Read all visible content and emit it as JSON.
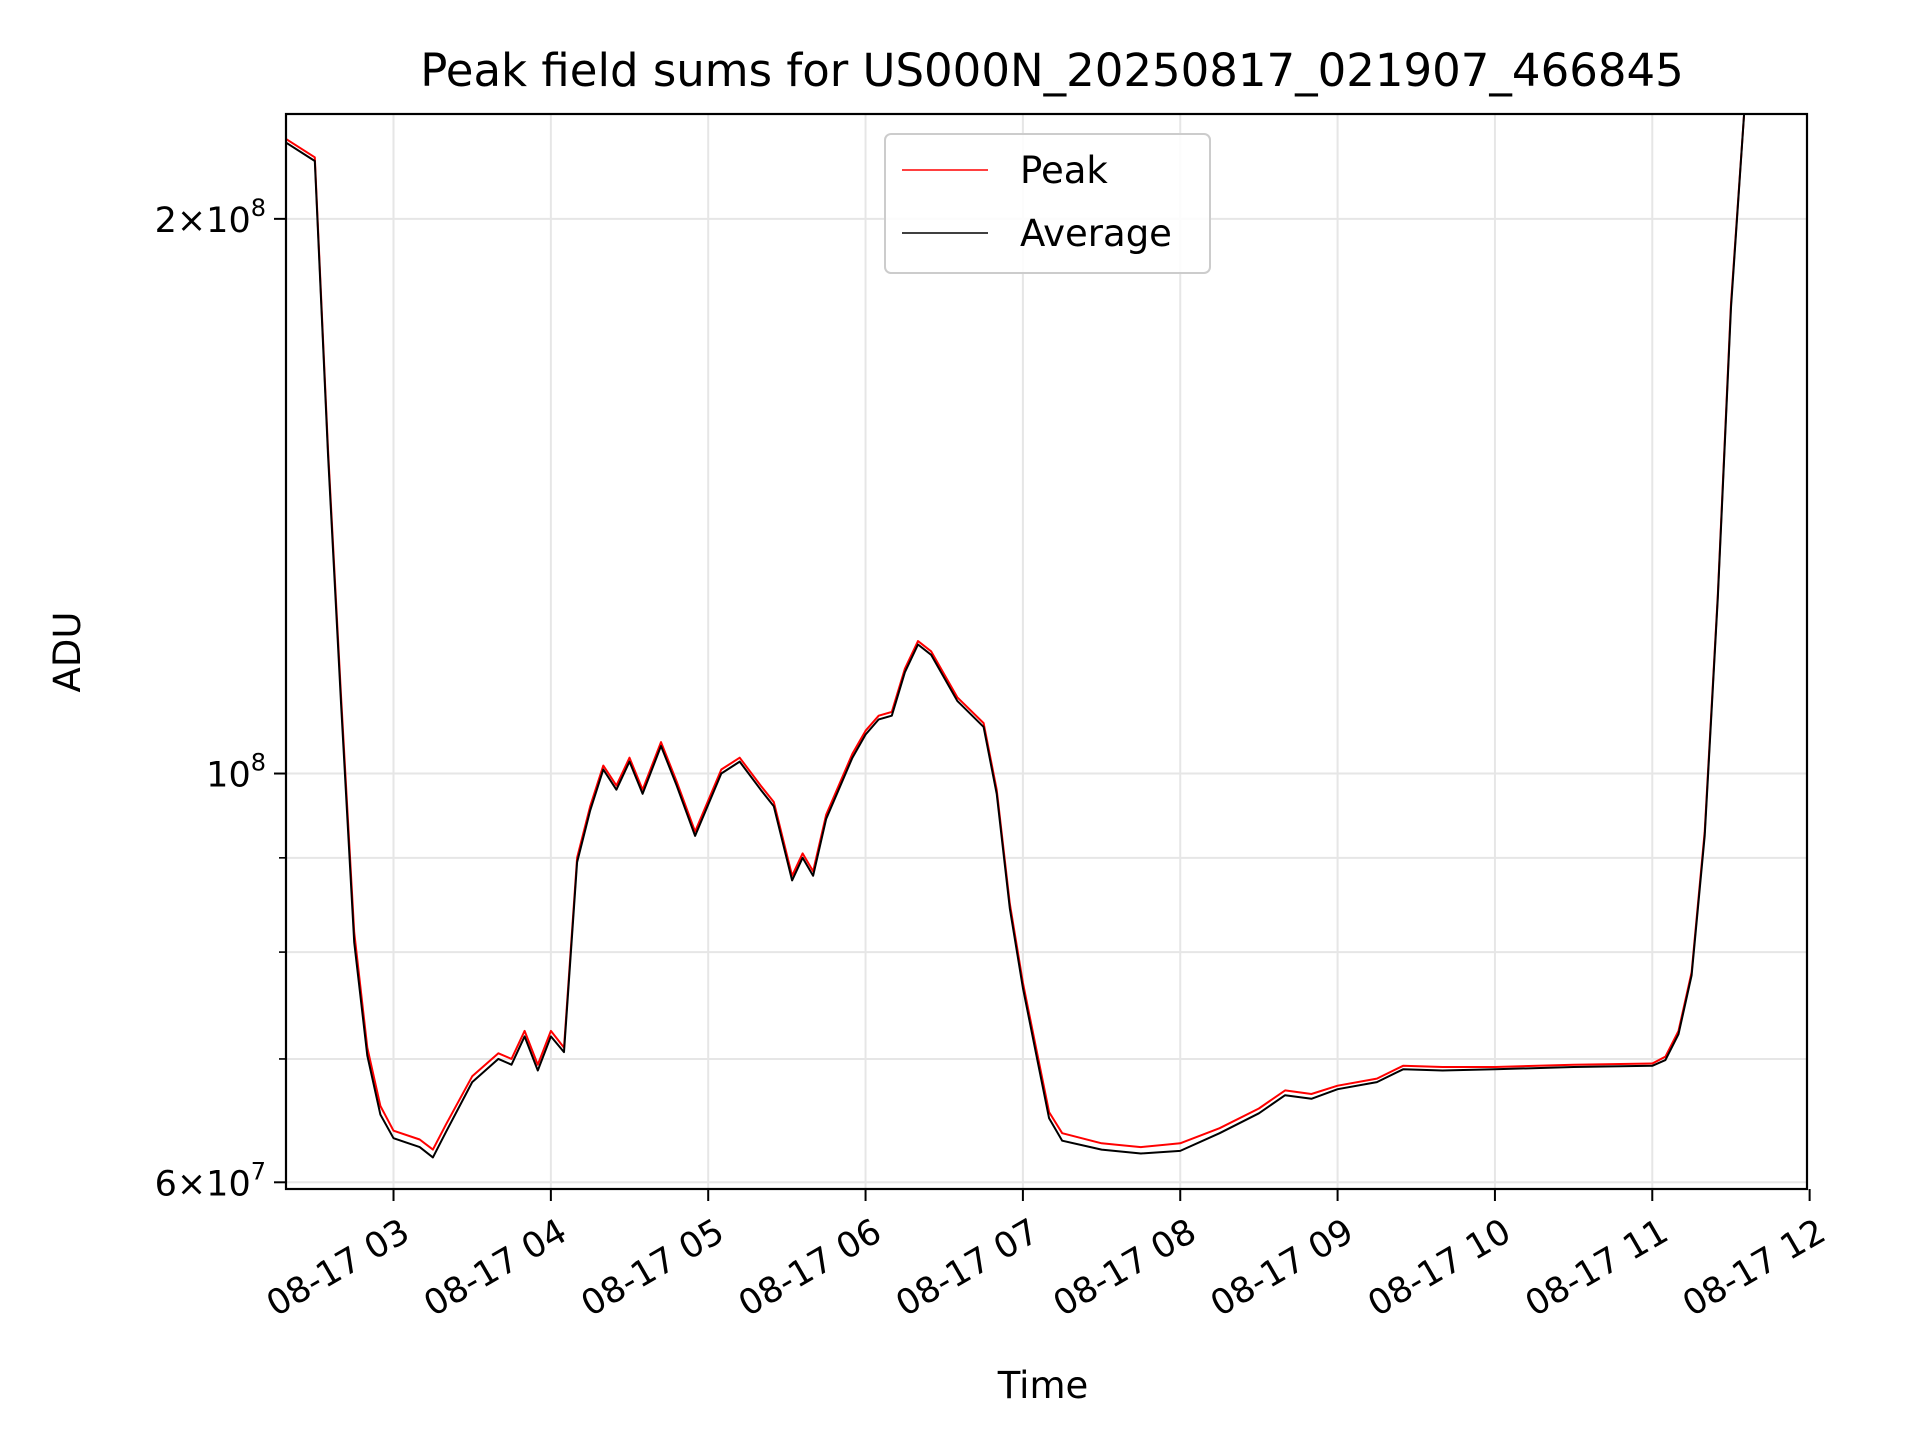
{
  "chart_data": {
    "type": "line",
    "title": "Peak field sums for US000N_20250817_021907_466845",
    "xlabel": "Time",
    "ylabel": "ADU",
    "y_scale": "log",
    "grid": true,
    "legend_position": "upper center",
    "x_range": [
      "2025-08-17 02:19",
      "2025-08-17 11:59"
    ],
    "ylim": [
      59500000,
      228000000
    ],
    "x_ticks": [
      {
        "t": "2025-08-17 03:00",
        "label": "08-17 03"
      },
      {
        "t": "2025-08-17 04:00",
        "label": "08-17 04"
      },
      {
        "t": "2025-08-17 05:00",
        "label": "08-17 05"
      },
      {
        "t": "2025-08-17 06:00",
        "label": "08-17 06"
      },
      {
        "t": "2025-08-17 07:00",
        "label": "08-17 07"
      },
      {
        "t": "2025-08-17 08:00",
        "label": "08-17 08"
      },
      {
        "t": "2025-08-17 09:00",
        "label": "08-17 09"
      },
      {
        "t": "2025-08-17 10:00",
        "label": "08-17 10"
      },
      {
        "t": "2025-08-17 11:00",
        "label": "08-17 11"
      },
      {
        "t": "2025-08-17 12:00",
        "label": "08-17 12"
      }
    ],
    "y_major_ticks": [
      {
        "value": 60000000,
        "mant": "6",
        "exp": "7"
      },
      {
        "value": 100000000,
        "mant": "",
        "exp": "8"
      },
      {
        "value": 200000000,
        "mant": "2",
        "exp": "8"
      }
    ],
    "y_minor_ticks": [
      70000000,
      80000000,
      90000000
    ],
    "series": [
      {
        "name": "Peak",
        "color": "#ff0000",
        "points": [
          [
            "2025-08-17 02:19",
            221000000
          ],
          [
            "2025-08-17 02:30",
            216000000
          ],
          [
            "2025-08-17 02:35",
            150000000
          ],
          [
            "2025-08-17 02:40",
            110000000
          ],
          [
            "2025-08-17 02:45",
            82000000
          ],
          [
            "2025-08-17 02:50",
            71000000
          ],
          [
            "2025-08-17 02:55",
            66000000
          ],
          [
            "2025-08-17 03:00",
            64000000
          ],
          [
            "2025-08-17 03:10",
            63300000
          ],
          [
            "2025-08-17 03:15",
            62500000
          ],
          [
            "2025-08-17 03:20",
            64500000
          ],
          [
            "2025-08-17 03:30",
            68500000
          ],
          [
            "2025-08-17 03:40",
            70500000
          ],
          [
            "2025-08-17 03:45",
            70000000
          ],
          [
            "2025-08-17 03:50",
            72500000
          ],
          [
            "2025-08-17 03:55",
            69500000
          ],
          [
            "2025-08-17 04:00",
            72500000
          ],
          [
            "2025-08-17 04:05",
            71000000
          ],
          [
            "2025-08-17 04:10",
            90000000
          ],
          [
            "2025-08-17 04:15",
            96000000
          ],
          [
            "2025-08-17 04:20",
            101000000
          ],
          [
            "2025-08-17 04:25",
            98500000
          ],
          [
            "2025-08-17 04:30",
            102000000
          ],
          [
            "2025-08-17 04:35",
            98000000
          ],
          [
            "2025-08-17 04:42",
            104000000
          ],
          [
            "2025-08-17 04:48",
            99000000
          ],
          [
            "2025-08-17 04:55",
            93000000
          ],
          [
            "2025-08-17 05:05",
            100500000
          ],
          [
            "2025-08-17 05:12",
            102000000
          ],
          [
            "2025-08-17 05:20",
            98500000
          ],
          [
            "2025-08-17 05:25",
            96500000
          ],
          [
            "2025-08-17 05:32",
            88000000
          ],
          [
            "2025-08-17 05:36",
            90500000
          ],
          [
            "2025-08-17 05:40",
            88500000
          ],
          [
            "2025-08-17 05:45",
            95000000
          ],
          [
            "2025-08-17 05:55",
            102500000
          ],
          [
            "2025-08-17 06:00",
            105500000
          ],
          [
            "2025-08-17 06:05",
            107500000
          ],
          [
            "2025-08-17 06:10",
            108000000
          ],
          [
            "2025-08-17 06:15",
            114000000
          ],
          [
            "2025-08-17 06:20",
            118000000
          ],
          [
            "2025-08-17 06:25",
            116500000
          ],
          [
            "2025-08-17 06:35",
            110000000
          ],
          [
            "2025-08-17 06:45",
            106500000
          ],
          [
            "2025-08-17 06:50",
            98000000
          ],
          [
            "2025-08-17 06:55",
            85000000
          ],
          [
            "2025-08-17 07:00",
            77000000
          ],
          [
            "2025-08-17 07:05",
            71000000
          ],
          [
            "2025-08-17 07:10",
            65500000
          ],
          [
            "2025-08-17 07:15",
            63800000
          ],
          [
            "2025-08-17 07:30",
            63000000
          ],
          [
            "2025-08-17 07:45",
            62700000
          ],
          [
            "2025-08-17 08:00",
            63000000
          ],
          [
            "2025-08-17 08:15",
            64200000
          ],
          [
            "2025-08-17 08:30",
            65800000
          ],
          [
            "2025-08-17 08:40",
            67300000
          ],
          [
            "2025-08-17 08:50",
            67000000
          ],
          [
            "2025-08-17 09:00",
            67700000
          ],
          [
            "2025-08-17 09:15",
            68300000
          ],
          [
            "2025-08-17 09:25",
            69400000
          ],
          [
            "2025-08-17 09:40",
            69300000
          ],
          [
            "2025-08-17 10:00",
            69300000
          ],
          [
            "2025-08-17 10:30",
            69500000
          ],
          [
            "2025-08-17 11:00",
            69600000
          ],
          [
            "2025-08-17 11:05",
            70200000
          ],
          [
            "2025-08-17 11:10",
            72500000
          ],
          [
            "2025-08-17 11:15",
            78000000
          ],
          [
            "2025-08-17 11:20",
            93000000
          ],
          [
            "2025-08-17 11:25",
            125000000
          ],
          [
            "2025-08-17 11:30",
            180000000
          ],
          [
            "2025-08-17 11:35",
            228000000
          ]
        ]
      },
      {
        "name": "Average",
        "color": "#000000",
        "points": [
          [
            "2025-08-17 02:19",
            220000000
          ],
          [
            "2025-08-17 02:30",
            215000000
          ],
          [
            "2025-08-17 02:35",
            149000000
          ],
          [
            "2025-08-17 02:40",
            109000000
          ],
          [
            "2025-08-17 02:45",
            81000000
          ],
          [
            "2025-08-17 02:50",
            70300000
          ],
          [
            "2025-08-17 02:55",
            65300000
          ],
          [
            "2025-08-17 03:00",
            63400000
          ],
          [
            "2025-08-17 03:10",
            62700000
          ],
          [
            "2025-08-17 03:15",
            61900000
          ],
          [
            "2025-08-17 03:20",
            63900000
          ],
          [
            "2025-08-17 03:30",
            68000000
          ],
          [
            "2025-08-17 03:40",
            70000000
          ],
          [
            "2025-08-17 03:45",
            69500000
          ],
          [
            "2025-08-17 03:50",
            72000000
          ],
          [
            "2025-08-17 03:55",
            69000000
          ],
          [
            "2025-08-17 04:00",
            72000000
          ],
          [
            "2025-08-17 04:05",
            70600000
          ],
          [
            "2025-08-17 04:10",
            89500000
          ],
          [
            "2025-08-17 04:15",
            95500000
          ],
          [
            "2025-08-17 04:20",
            100500000
          ],
          [
            "2025-08-17 04:25",
            98000000
          ],
          [
            "2025-08-17 04:30",
            101500000
          ],
          [
            "2025-08-17 04:35",
            97500000
          ],
          [
            "2025-08-17 04:42",
            103500000
          ],
          [
            "2025-08-17 04:48",
            98500000
          ],
          [
            "2025-08-17 04:55",
            92500000
          ],
          [
            "2025-08-17 05:05",
            100000000
          ],
          [
            "2025-08-17 05:12",
            101500000
          ],
          [
            "2025-08-17 05:20",
            98000000
          ],
          [
            "2025-08-17 05:25",
            96000000
          ],
          [
            "2025-08-17 05:32",
            87500000
          ],
          [
            "2025-08-17 05:36",
            90000000
          ],
          [
            "2025-08-17 05:40",
            88000000
          ],
          [
            "2025-08-17 05:45",
            94500000
          ],
          [
            "2025-08-17 05:55",
            102000000
          ],
          [
            "2025-08-17 06:00",
            105000000
          ],
          [
            "2025-08-17 06:05",
            107000000
          ],
          [
            "2025-08-17 06:10",
            107500000
          ],
          [
            "2025-08-17 06:15",
            113500000
          ],
          [
            "2025-08-17 06:20",
            117500000
          ],
          [
            "2025-08-17 06:25",
            116000000
          ],
          [
            "2025-08-17 06:35",
            109500000
          ],
          [
            "2025-08-17 06:45",
            106000000
          ],
          [
            "2025-08-17 06:50",
            97500000
          ],
          [
            "2025-08-17 06:55",
            84500000
          ],
          [
            "2025-08-17 07:00",
            76500000
          ],
          [
            "2025-08-17 07:05",
            70500000
          ],
          [
            "2025-08-17 07:10",
            65000000
          ],
          [
            "2025-08-17 07:15",
            63200000
          ],
          [
            "2025-08-17 07:30",
            62500000
          ],
          [
            "2025-08-17 07:45",
            62200000
          ],
          [
            "2025-08-17 08:00",
            62400000
          ],
          [
            "2025-08-17 08:15",
            63800000
          ],
          [
            "2025-08-17 08:30",
            65400000
          ],
          [
            "2025-08-17 08:40",
            66900000
          ],
          [
            "2025-08-17 08:50",
            66600000
          ],
          [
            "2025-08-17 09:00",
            67400000
          ],
          [
            "2025-08-17 09:15",
            68000000
          ],
          [
            "2025-08-17 09:25",
            69100000
          ],
          [
            "2025-08-17 09:40",
            69000000
          ],
          [
            "2025-08-17 10:00",
            69100000
          ],
          [
            "2025-08-17 10:30",
            69300000
          ],
          [
            "2025-08-17 11:00",
            69400000
          ],
          [
            "2025-08-17 11:05",
            69900000
          ],
          [
            "2025-08-17 11:10",
            72200000
          ],
          [
            "2025-08-17 11:15",
            77700000
          ],
          [
            "2025-08-17 11:20",
            92500000
          ],
          [
            "2025-08-17 11:25",
            124500000
          ],
          [
            "2025-08-17 11:30",
            179000000
          ],
          [
            "2025-08-17 11:35",
            228000000
          ]
        ]
      }
    ]
  }
}
